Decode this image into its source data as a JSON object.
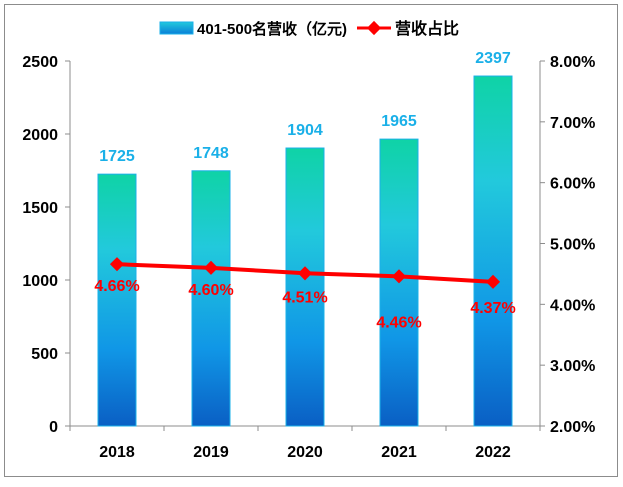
{
  "chart_data": {
    "type": "bar+line",
    "categories": [
      "2018",
      "2019",
      "2020",
      "2021",
      "2022"
    ],
    "series": [
      {
        "name": "401-500名营收（亿元)",
        "type": "bar",
        "axis": "left",
        "values": [
          1725,
          1748,
          1904,
          1965,
          2397
        ],
        "labels": [
          "1725",
          "1748",
          "1904",
          "1965",
          "2397"
        ],
        "color": "#1ab0e8"
      },
      {
        "name": "营收占比",
        "type": "line",
        "axis": "right",
        "values": [
          4.66,
          4.6,
          4.51,
          4.46,
          4.37
        ],
        "labels": [
          "4.66%",
          "4.60%",
          "4.51%",
          "4.46%",
          "4.37%"
        ],
        "color": "#ff0000"
      }
    ],
    "y_left": {
      "lim": [
        0,
        2500
      ],
      "ticks": [
        "0",
        "500",
        "1000",
        "1500",
        "2000",
        "2500"
      ]
    },
    "y_right": {
      "lim": [
        2,
        8
      ],
      "ticks": [
        "2.00%",
        "3.00%",
        "4.00%",
        "5.00%",
        "6.00%",
        "7.00%",
        "8.00%"
      ]
    },
    "legend": "top",
    "grid": false,
    "bar_label_color": "#1ab0e8"
  }
}
